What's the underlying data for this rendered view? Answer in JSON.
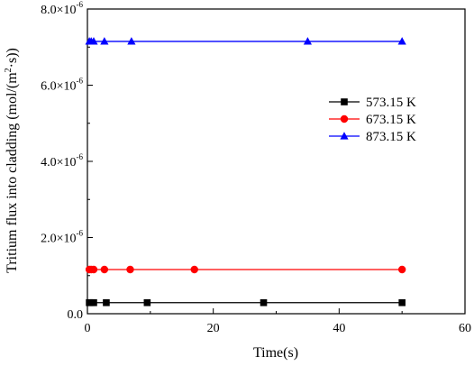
{
  "chart_data": {
    "type": "line",
    "title": "",
    "xlabel": "Time(s)",
    "ylabel_main": "Tritium flux into cladding (mol/(m",
    "ylabel_sup": "2",
    "ylabel_tail": "·s))",
    "xlim": [
      0,
      60
    ],
    "ylim": [
      0,
      8e-06
    ],
    "x_ticks": [
      0,
      20,
      40,
      60
    ],
    "x_tick_labels": [
      "0",
      "20",
      "40",
      "60"
    ],
    "y_ticks": [
      0,
      2e-06,
      4e-06,
      6e-06,
      8e-06
    ],
    "y_tick_labels": [
      {
        "base": "0.0",
        "exp": ""
      },
      {
        "base": "2.0×10",
        "exp": "-6"
      },
      {
        "base": "4.0×10",
        "exp": "-6"
      },
      {
        "base": "6.0×10",
        "exp": "-6"
      },
      {
        "base": "8.0×10",
        "exp": "-6"
      }
    ],
    "grid": false,
    "legend_position": "right",
    "series": [
      {
        "name": "573.15 K",
        "color": "#000000",
        "marker": "square",
        "x": [
          0.3,
          0.6,
          1.0,
          3.0,
          9.5,
          28.0,
          50.0
        ],
        "y": [
          2.9e-07,
          2.9e-07,
          2.9e-07,
          2.9e-07,
          2.9e-07,
          2.9e-07,
          2.9e-07
        ]
      },
      {
        "name": "673.15 K",
        "color": "#ff0000",
        "marker": "circle",
        "x": [
          0.3,
          0.6,
          1.0,
          2.7,
          6.8,
          17.0,
          50.0
        ],
        "y": [
          1.16e-06,
          1.16e-06,
          1.16e-06,
          1.16e-06,
          1.16e-06,
          1.16e-06,
          1.16e-06
        ]
      },
      {
        "name": "873.15 K",
        "color": "#0000ff",
        "marker": "triangle",
        "x": [
          0.3,
          0.6,
          1.0,
          2.7,
          7.0,
          35.0,
          50.0
        ],
        "y": [
          7.15e-06,
          7.15e-06,
          7.15e-06,
          7.15e-06,
          7.15e-06,
          7.15e-06,
          7.15e-06
        ]
      }
    ]
  }
}
